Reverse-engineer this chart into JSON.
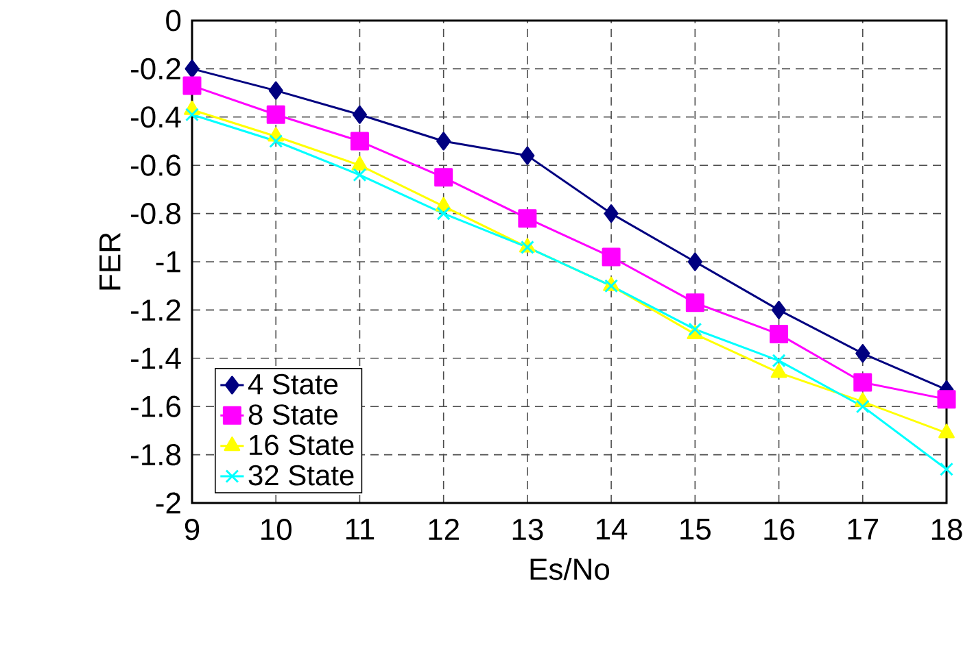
{
  "chart_data": {
    "type": "line",
    "xlabel": "Es/No",
    "ylabel": "FER",
    "x": [
      9,
      10,
      11,
      12,
      13,
      14,
      15,
      16,
      17,
      18
    ],
    "xlim": [
      9,
      18
    ],
    "xticks": [
      9,
      10,
      11,
      12,
      13,
      14,
      15,
      16,
      17,
      18
    ],
    "ylim": [
      -2,
      0
    ],
    "yticks": [
      -2,
      -1.8,
      -1.6,
      -1.4,
      -1.2,
      -1,
      -0.8,
      -0.6,
      -0.4,
      -0.2,
      0
    ],
    "grid": true,
    "legend": "bottom left",
    "line_style": "solid",
    "series": [
      {
        "name": "4 State",
        "color": "#000080",
        "marker": "diamond",
        "values": [
          -0.2,
          -0.29,
          -0.39,
          -0.5,
          -0.56,
          -0.8,
          -1.0,
          -1.2,
          -1.38,
          -1.53
        ]
      },
      {
        "name": "8 State",
        "color": "#ff00ff",
        "marker": "square",
        "values": [
          -0.27,
          -0.39,
          -0.5,
          -0.65,
          -0.82,
          -0.98,
          -1.17,
          -1.3,
          -1.5,
          -1.57
        ]
      },
      {
        "name": "16 State",
        "color": "#ffff00",
        "marker": "triangle",
        "values": [
          -0.37,
          -0.48,
          -0.6,
          -0.77,
          -0.94,
          -1.1,
          -1.3,
          -1.46,
          -1.58,
          -1.71
        ]
      },
      {
        "name": "32 State",
        "color": "#00ffff",
        "marker": "cross",
        "values": [
          -0.39,
          -0.5,
          -0.64,
          -0.8,
          -0.94,
          -1.1,
          -1.28,
          -1.41,
          -1.6,
          -1.86
        ]
      }
    ]
  }
}
